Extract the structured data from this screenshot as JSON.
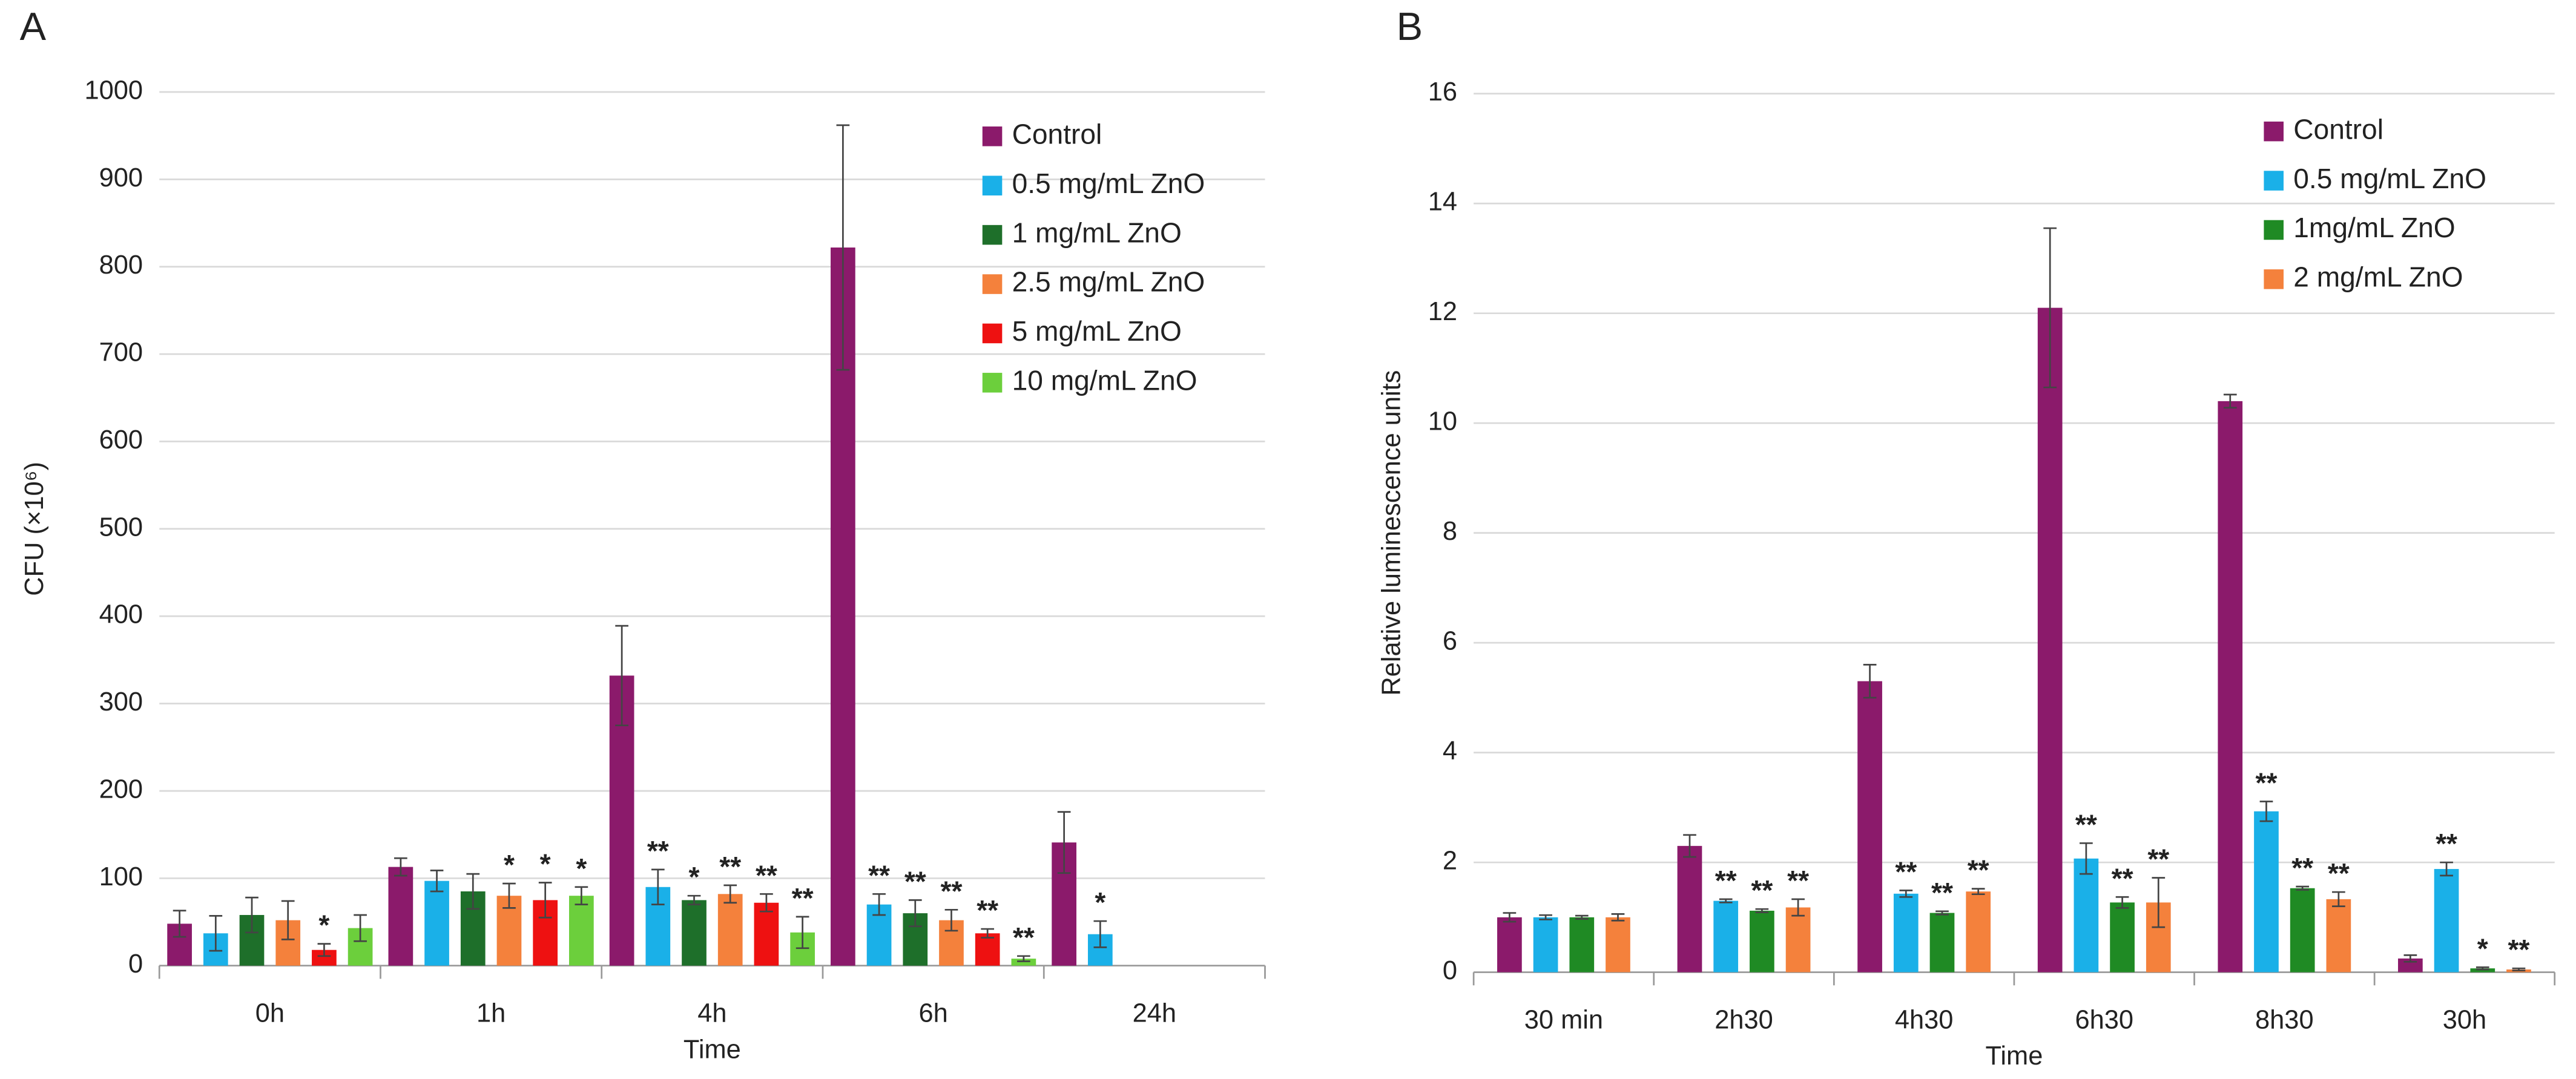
{
  "chart_data": [
    {
      "type": "bar",
      "panel_label": "A",
      "y_label": "CFU (×10⁶)",
      "x_label": "Time",
      "categories": [
        "0h",
        "1h",
        "4h",
        "6h",
        "24h"
      ],
      "ylim": [
        0,
        1000
      ],
      "yticks": [
        0,
        100,
        200,
        300,
        400,
        500,
        600,
        700,
        800,
        900,
        1000
      ],
      "grid": true,
      "series": [
        {
          "name": "Control",
          "color": "#8b1a6b",
          "values": [
            48,
            113,
            332,
            822,
            141
          ],
          "errors": [
            15,
            10,
            57,
            140,
            35
          ],
          "annotations": [
            null,
            null,
            null,
            null,
            null
          ]
        },
        {
          "name": "0.5 mg/mL ZnO",
          "color": "#1ab0e8",
          "values": [
            37,
            97,
            90,
            70,
            36
          ],
          "errors": [
            20,
            12,
            20,
            12,
            15
          ],
          "annotations": [
            null,
            null,
            "**",
            "**",
            "*"
          ]
        },
        {
          "name": "1  mg/mL ZnO",
          "color": "#1e6f2a",
          "values": [
            58,
            85,
            75,
            60,
            null
          ],
          "errors": [
            20,
            20,
            5,
            15,
            null
          ],
          "annotations": [
            null,
            null,
            "*",
            "**",
            null
          ]
        },
        {
          "name": "2.5 mg/mL ZnO",
          "color": "#f4813c",
          "values": [
            52,
            80,
            82,
            52,
            null
          ],
          "errors": [
            22,
            14,
            10,
            12,
            null
          ],
          "annotations": [
            null,
            "*",
            "**",
            "**",
            null
          ]
        },
        {
          "name": "5 mg/mL ZnO",
          "color": "#ee1111",
          "values": [
            18,
            75,
            72,
            37,
            null
          ],
          "errors": [
            7,
            20,
            10,
            5,
            null
          ],
          "annotations": [
            "*",
            "*",
            "**",
            "**",
            null
          ]
        },
        {
          "name": "10 mg/mL ZnO",
          "color": "#6ccf3c",
          "values": [
            43,
            80,
            38,
            8,
            null
          ],
          "errors": [
            15,
            10,
            18,
            3,
            null
          ],
          "annotations": [
            null,
            "*",
            "**",
            "**",
            null
          ]
        }
      ]
    },
    {
      "type": "bar",
      "panel_label": "B",
      "y_label": "Relative luminescence units",
      "x_label": "Time",
      "categories": [
        "30 min",
        "2h30",
        "4h30",
        "6h30",
        "8h30",
        "30h"
      ],
      "ylim": [
        0,
        16
      ],
      "yticks": [
        0,
        2,
        4,
        6,
        8,
        10,
        12,
        14,
        16
      ],
      "grid": true,
      "series": [
        {
          "name": "Control",
          "color": "#8b1a6b",
          "values": [
            1.0,
            2.3,
            5.3,
            12.1,
            10.4,
            0.25
          ],
          "errors": [
            0.08,
            0.2,
            0.3,
            1.45,
            0.12,
            0.06
          ],
          "annotations": [
            null,
            null,
            null,
            null,
            null,
            null
          ]
        },
        {
          "name": "0.5 mg/mL ZnO",
          "color": "#1ab0e8",
          "values": [
            1.0,
            1.3,
            1.43,
            2.07,
            2.93,
            1.88
          ],
          "errors": [
            0.04,
            0.03,
            0.06,
            0.28,
            0.18,
            0.12
          ],
          "annotations": [
            null,
            "**",
            "**",
            "**",
            "**",
            "**"
          ]
        },
        {
          "name": "1mg/mL ZnO",
          "color": "#1f8a24",
          "values": [
            1.0,
            1.12,
            1.08,
            1.27,
            1.53,
            0.07
          ],
          "errors": [
            0.03,
            0.03,
            0.03,
            0.1,
            0.03,
            0.02
          ],
          "annotations": [
            null,
            "**",
            "**",
            "**",
            "**",
            "*"
          ]
        },
        {
          "name": "2 mg/mL ZnO",
          "color": "#f4813c",
          "values": [
            1.0,
            1.18,
            1.47,
            1.27,
            1.33,
            0.05
          ],
          "errors": [
            0.06,
            0.15,
            0.05,
            0.45,
            0.13,
            0.02
          ],
          "annotations": [
            null,
            "**",
            "**",
            "**",
            "**",
            "**"
          ]
        }
      ]
    }
  ]
}
